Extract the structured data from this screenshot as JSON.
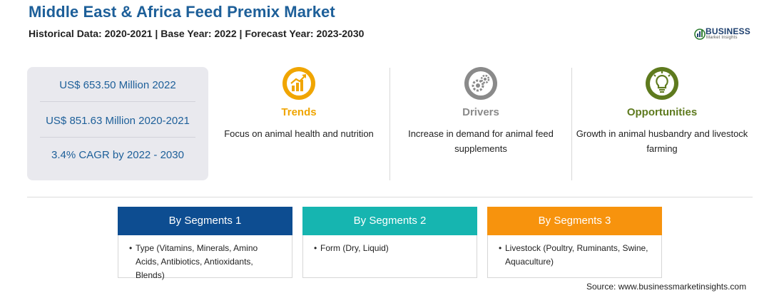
{
  "header": {
    "title": "Middle East & Africa Feed Premix Market",
    "subtitle": "Historical Data: 2020-2021 | Base Year: 2022 | Forecast Year: 2023-2030"
  },
  "logo": {
    "word": "BUSINESS",
    "sub": "Market Insights"
  },
  "stats": [
    "US$ 653.50 Million 2022",
    "US$ 851.63 Million 2020-2021",
    "3.4% CAGR by 2022 - 2030"
  ],
  "columns": [
    {
      "title": "Trends",
      "text": "Focus on animal health and nutrition",
      "color": "#f0a500",
      "icon": "chart-up-icon"
    },
    {
      "title": "Drivers",
      "text": "Increase in demand for animal feed supplements",
      "color": "#8a8a8a",
      "icon": "gears-icon"
    },
    {
      "title": "Opportunities",
      "text": "Growth in animal husbandry and livestock farming",
      "color": "#5e7a1e",
      "icon": "lightbulb-icon"
    }
  ],
  "segments": [
    {
      "label": "By Segments 1",
      "color": "#0d4d91",
      "text": "Type (Vitamins, Minerals, Amino Acids, Antibiotics, Antioxidants, Blends)"
    },
    {
      "label": "By Segments 2",
      "color": "#16b5b0",
      "text": "Form (Dry, Liquid)"
    },
    {
      "label": "By Segments 3",
      "color": "#f7930d",
      "text": "Livestock (Poultry, Ruminants, Swine, Aquaculture)"
    }
  ],
  "source": "Source: www.businessmarketinsights.com"
}
